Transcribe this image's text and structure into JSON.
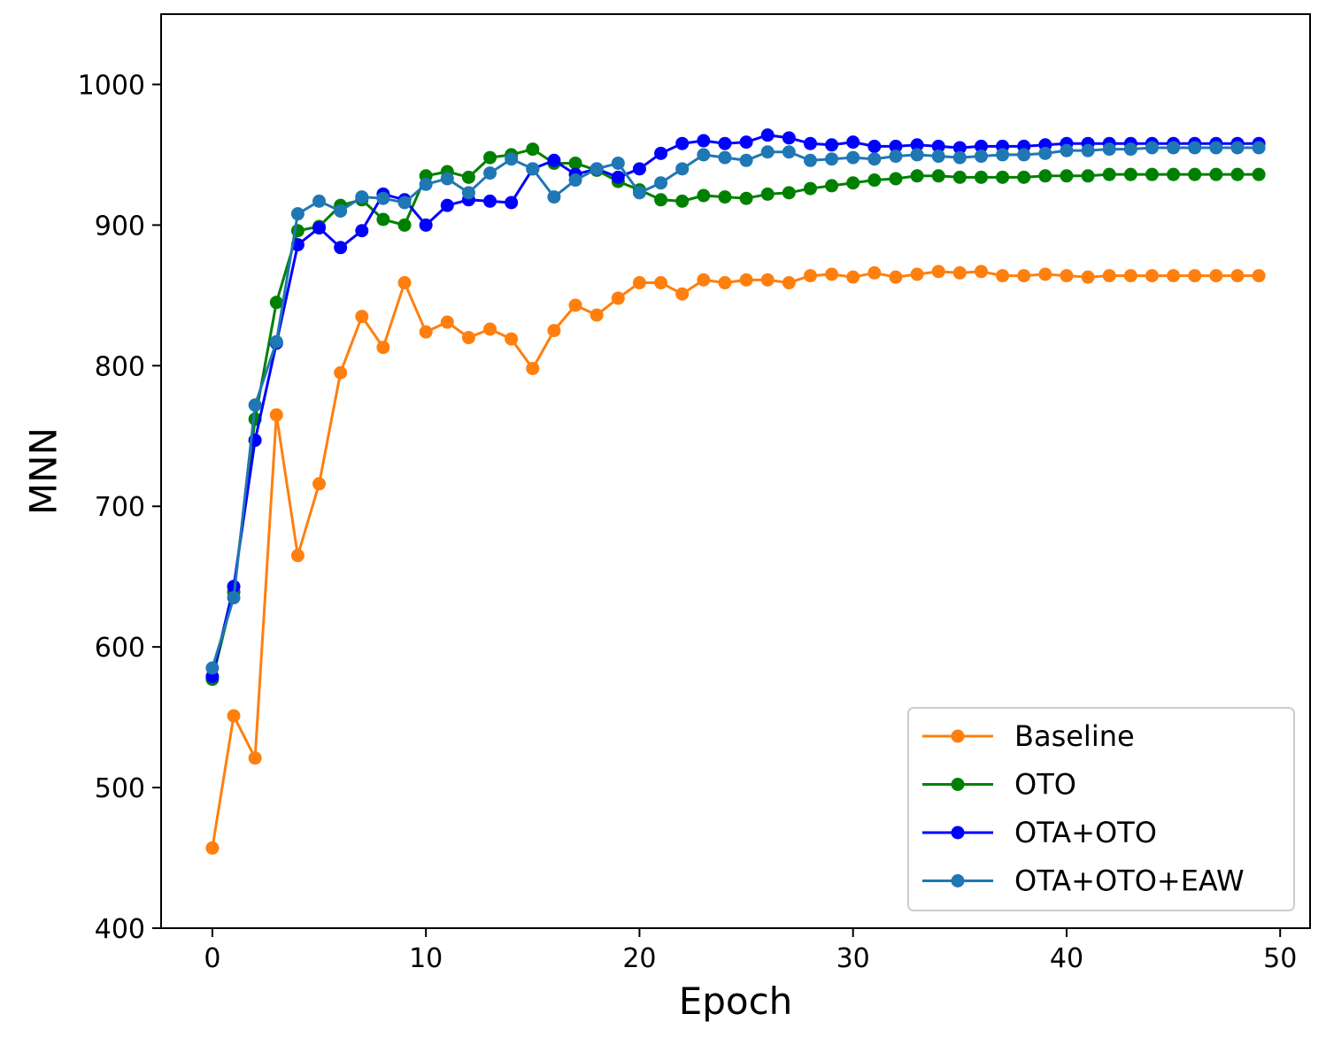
{
  "chart_data": {
    "type": "line",
    "title": "",
    "xlabel": "Epoch",
    "ylabel": "MNN",
    "xlim": [
      -2.4,
      51.4
    ],
    "ylim": [
      400,
      1050
    ],
    "xticks": [
      0,
      10,
      20,
      30,
      40,
      50
    ],
    "yticks": [
      400,
      500,
      600,
      700,
      800,
      900,
      1000
    ],
    "grid": false,
    "legend_position": "lower-right",
    "x": [
      0,
      1,
      2,
      3,
      4,
      5,
      6,
      7,
      8,
      9,
      10,
      11,
      12,
      13,
      14,
      15,
      16,
      17,
      18,
      19,
      20,
      21,
      22,
      23,
      24,
      25,
      26,
      27,
      28,
      29,
      30,
      31,
      32,
      33,
      34,
      35,
      36,
      37,
      38,
      39,
      40,
      41,
      42,
      43,
      44,
      45,
      46,
      47,
      48,
      49
    ],
    "series": [
      {
        "name": "Baseline",
        "color": "#ff7f0e",
        "values": [
          457,
          551,
          521,
          765,
          665,
          716,
          795,
          835,
          813,
          859,
          824,
          831,
          820,
          826,
          819,
          798,
          825,
          843,
          836,
          848,
          859,
          859,
          851,
          861,
          859,
          861,
          861,
          859,
          864,
          865,
          863,
          866,
          863,
          865,
          867,
          866,
          867,
          864,
          864,
          865,
          864,
          863,
          864,
          864,
          864,
          864,
          864,
          864,
          864,
          864
        ]
      },
      {
        "name": "OTO",
        "color": "#008000",
        "values": [
          577,
          639,
          762,
          845,
          896,
          899,
          914,
          918,
          904,
          900,
          935,
          938,
          934,
          948,
          950,
          954,
          944,
          944,
          939,
          931,
          925,
          918,
          917,
          921,
          920,
          919,
          922,
          923,
          926,
          928,
          930,
          932,
          933,
          935,
          935,
          934,
          934,
          934,
          934,
          935,
          935,
          935,
          936,
          936,
          936,
          936,
          936,
          936,
          936,
          936
        ]
      },
      {
        "name": "OTA+OTO",
        "color": "#0000ff",
        "values": [
          579,
          643,
          747,
          816,
          886,
          898,
          884,
          896,
          922,
          918,
          900,
          914,
          918,
          917,
          916,
          940,
          946,
          936,
          940,
          934,
          940,
          951,
          958,
          960,
          958,
          959,
          964,
          962,
          958,
          957,
          959,
          956,
          956,
          957,
          956,
          955,
          956,
          956,
          956,
          957,
          958,
          958,
          958,
          958,
          958,
          958,
          958,
          958,
          958,
          958
        ]
      },
      {
        "name": "OTA+OTO+EAW",
        "color": "#1f77b4",
        "values": [
          585,
          635,
          772,
          817,
          908,
          917,
          910,
          920,
          919,
          916,
          929,
          933,
          923,
          937,
          947,
          940,
          920,
          932,
          940,
          944,
          923,
          930,
          940,
          950,
          948,
          946,
          952,
          952,
          946,
          947,
          948,
          947,
          949,
          950,
          949,
          948,
          949,
          950,
          950,
          951,
          953,
          953,
          954,
          954,
          955,
          955,
          955,
          955,
          955,
          955
        ]
      }
    ]
  }
}
